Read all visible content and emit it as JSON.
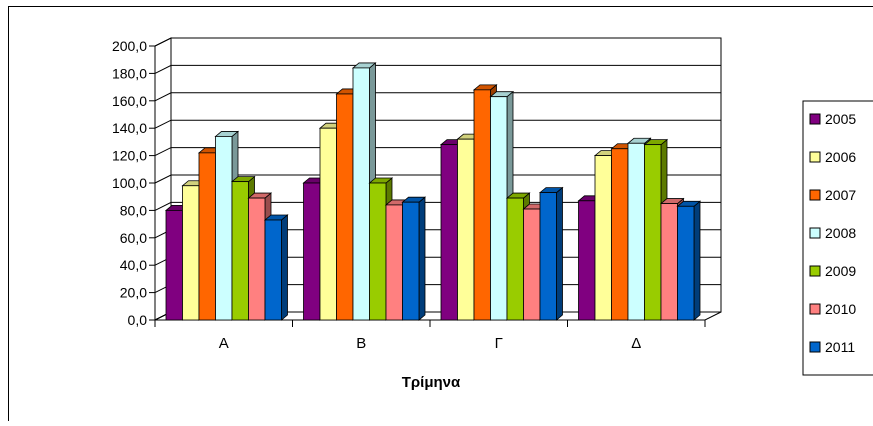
{
  "chart_data": {
    "type": "bar",
    "style": "3d-clustered-column",
    "categories": [
      "Α",
      "Β",
      "Γ",
      "Δ"
    ],
    "series": [
      {
        "name": "2005",
        "color": "#800080",
        "values": [
          80,
          100,
          128,
          87
        ]
      },
      {
        "name": "2006",
        "color": "#FFFF99",
        "values": [
          98,
          140,
          132,
          120
        ]
      },
      {
        "name": "2007",
        "color": "#FF6600",
        "values": [
          122,
          165,
          168,
          125
        ]
      },
      {
        "name": "2008",
        "color": "#CCFFFF",
        "values": [
          134,
          184,
          163,
          129
        ]
      },
      {
        "name": "2009",
        "color": "#99CC00",
        "values": [
          101,
          100,
          89,
          128
        ]
      },
      {
        "name": "2010",
        "color": "#FF8080",
        "values": [
          89,
          84,
          81,
          85
        ]
      },
      {
        "name": "2011",
        "color": "#0066CC",
        "values": [
          73,
          86,
          93,
          83
        ]
      }
    ],
    "title": "",
    "xlabel": "Τρίμηνα",
    "ylabel": "",
    "ylim": [
      0,
      200
    ],
    "yticks": [
      "0,0",
      "20,0",
      "40,0",
      "60,0",
      "80,0",
      "100,0",
      "120,0",
      "140,0",
      "160,0",
      "180,0",
      "200,0"
    ],
    "grid": true,
    "legend": "right"
  }
}
